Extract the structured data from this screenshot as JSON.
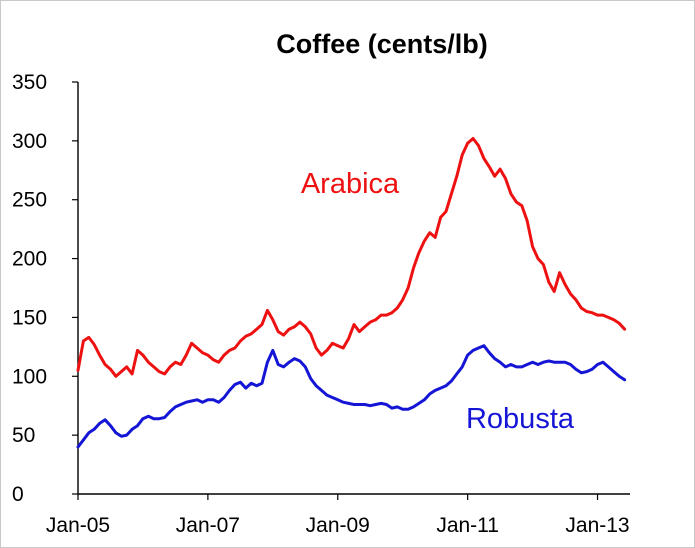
{
  "chart_data": {
    "type": "line",
    "title": "Coffee (cents/lb)",
    "xlabel": "",
    "ylabel": "",
    "ylim": [
      0,
      350
    ],
    "yticks": [
      0,
      50,
      100,
      150,
      200,
      250,
      300,
      350
    ],
    "xlim": [
      "2005-01",
      "2013-07"
    ],
    "xticks": [
      "Jan-05",
      "Jan-07",
      "Jan-09",
      "Jan-11",
      "Jan-13"
    ],
    "grid": false,
    "legend": "inline labels",
    "series": [
      {
        "name": "Arabica",
        "color": "#ee1111",
        "points": [
          [
            "2005-01",
            105
          ],
          [
            "2005-02",
            130
          ],
          [
            "2005-03",
            133
          ],
          [
            "2005-04",
            127
          ],
          [
            "2005-05",
            118
          ],
          [
            "2005-06",
            110
          ],
          [
            "2005-07",
            106
          ],
          [
            "2005-08",
            100
          ],
          [
            "2005-09",
            104
          ],
          [
            "2005-10",
            108
          ],
          [
            "2005-11",
            102
          ],
          [
            "2005-12",
            122
          ],
          [
            "2006-01",
            118
          ],
          [
            "2006-02",
            112
          ],
          [
            "2006-03",
            108
          ],
          [
            "2006-04",
            104
          ],
          [
            "2006-05",
            102
          ],
          [
            "2006-06",
            108
          ],
          [
            "2006-07",
            112
          ],
          [
            "2006-08",
            110
          ],
          [
            "2006-09",
            118
          ],
          [
            "2006-10",
            128
          ],
          [
            "2006-11",
            124
          ],
          [
            "2006-12",
            120
          ],
          [
            "2007-01",
            118
          ],
          [
            "2007-02",
            114
          ],
          [
            "2007-03",
            112
          ],
          [
            "2007-04",
            118
          ],
          [
            "2007-05",
            122
          ],
          [
            "2007-06",
            124
          ],
          [
            "2007-07",
            130
          ],
          [
            "2007-08",
            134
          ],
          [
            "2007-09",
            136
          ],
          [
            "2007-10",
            140
          ],
          [
            "2007-11",
            144
          ],
          [
            "2007-12",
            156
          ],
          [
            "2008-01",
            148
          ],
          [
            "2008-02",
            138
          ],
          [
            "2008-03",
            135
          ],
          [
            "2008-04",
            140
          ],
          [
            "2008-05",
            142
          ],
          [
            "2008-06",
            146
          ],
          [
            "2008-07",
            142
          ],
          [
            "2008-08",
            136
          ],
          [
            "2008-09",
            124
          ],
          [
            "2008-10",
            118
          ],
          [
            "2008-11",
            122
          ],
          [
            "2008-12",
            128
          ],
          [
            "2009-01",
            126
          ],
          [
            "2009-02",
            124
          ],
          [
            "2009-03",
            132
          ],
          [
            "2009-04",
            144
          ],
          [
            "2009-05",
            138
          ],
          [
            "2009-06",
            142
          ],
          [
            "2009-07",
            146
          ],
          [
            "2009-08",
            148
          ],
          [
            "2009-09",
            152
          ],
          [
            "2009-10",
            152
          ],
          [
            "2009-11",
            154
          ],
          [
            "2009-12",
            158
          ],
          [
            "2010-01",
            165
          ],
          [
            "2010-02",
            175
          ],
          [
            "2010-03",
            192
          ],
          [
            "2010-04",
            205
          ],
          [
            "2010-05",
            215
          ],
          [
            "2010-06",
            222
          ],
          [
            "2010-07",
            218
          ],
          [
            "2010-08",
            235
          ],
          [
            "2010-09",
            240
          ],
          [
            "2010-10",
            255
          ],
          [
            "2010-11",
            270
          ],
          [
            "2010-12",
            288
          ],
          [
            "2011-01",
            298
          ],
          [
            "2011-02",
            302
          ],
          [
            "2011-03",
            296
          ],
          [
            "2011-04",
            285
          ],
          [
            "2011-05",
            278
          ],
          [
            "2011-06",
            270
          ],
          [
            "2011-07",
            276
          ],
          [
            "2011-08",
            268
          ],
          [
            "2011-09",
            255
          ],
          [
            "2011-10",
            248
          ],
          [
            "2011-11",
            245
          ],
          [
            "2011-12",
            232
          ],
          [
            "2012-01",
            210
          ],
          [
            "2012-02",
            200
          ],
          [
            "2012-03",
            195
          ],
          [
            "2012-04",
            180
          ],
          [
            "2012-05",
            172
          ],
          [
            "2012-06",
            188
          ],
          [
            "2012-07",
            178
          ],
          [
            "2012-08",
            170
          ],
          [
            "2012-09",
            165
          ],
          [
            "2012-10",
            158
          ],
          [
            "2012-11",
            155
          ],
          [
            "2012-12",
            154
          ],
          [
            "2013-01",
            152
          ],
          [
            "2013-02",
            152
          ],
          [
            "2013-03",
            150
          ],
          [
            "2013-04",
            148
          ],
          [
            "2013-05",
            145
          ],
          [
            "2013-06",
            140
          ]
        ]
      },
      {
        "name": "Robusta",
        "color": "#1515d6",
        "points": [
          [
            "2005-01",
            40
          ],
          [
            "2005-02",
            46
          ],
          [
            "2005-03",
            52
          ],
          [
            "2005-04",
            55
          ],
          [
            "2005-05",
            60
          ],
          [
            "2005-06",
            63
          ],
          [
            "2005-07",
            58
          ],
          [
            "2005-08",
            52
          ],
          [
            "2005-09",
            49
          ],
          [
            "2005-10",
            50
          ],
          [
            "2005-11",
            55
          ],
          [
            "2005-12",
            58
          ],
          [
            "2006-01",
            64
          ],
          [
            "2006-02",
            66
          ],
          [
            "2006-03",
            64
          ],
          [
            "2006-04",
            64
          ],
          [
            "2006-05",
            65
          ],
          [
            "2006-06",
            70
          ],
          [
            "2006-07",
            74
          ],
          [
            "2006-08",
            76
          ],
          [
            "2006-09",
            78
          ],
          [
            "2006-10",
            79
          ],
          [
            "2006-11",
            80
          ],
          [
            "2006-12",
            78
          ],
          [
            "2007-01",
            80
          ],
          [
            "2007-02",
            80
          ],
          [
            "2007-03",
            78
          ],
          [
            "2007-04",
            82
          ],
          [
            "2007-05",
            88
          ],
          [
            "2007-06",
            93
          ],
          [
            "2007-07",
            95
          ],
          [
            "2007-08",
            90
          ],
          [
            "2007-09",
            94
          ],
          [
            "2007-10",
            92
          ],
          [
            "2007-11",
            94
          ],
          [
            "2007-12",
            112
          ],
          [
            "2008-01",
            122
          ],
          [
            "2008-02",
            110
          ],
          [
            "2008-03",
            108
          ],
          [
            "2008-04",
            112
          ],
          [
            "2008-05",
            115
          ],
          [
            "2008-06",
            113
          ],
          [
            "2008-07",
            108
          ],
          [
            "2008-08",
            98
          ],
          [
            "2008-09",
            92
          ],
          [
            "2008-10",
            88
          ],
          [
            "2008-11",
            84
          ],
          [
            "2008-12",
            82
          ],
          [
            "2009-01",
            80
          ],
          [
            "2009-02",
            78
          ],
          [
            "2009-03",
            77
          ],
          [
            "2009-04",
            76
          ],
          [
            "2009-05",
            76
          ],
          [
            "2009-06",
            76
          ],
          [
            "2009-07",
            75
          ],
          [
            "2009-08",
            76
          ],
          [
            "2009-09",
            77
          ],
          [
            "2009-10",
            76
          ],
          [
            "2009-11",
            73
          ],
          [
            "2009-12",
            74
          ],
          [
            "2010-01",
            72
          ],
          [
            "2010-02",
            72
          ],
          [
            "2010-03",
            74
          ],
          [
            "2010-04",
            77
          ],
          [
            "2010-05",
            80
          ],
          [
            "2010-06",
            85
          ],
          [
            "2010-07",
            88
          ],
          [
            "2010-08",
            90
          ],
          [
            "2010-09",
            92
          ],
          [
            "2010-10",
            96
          ],
          [
            "2010-11",
            102
          ],
          [
            "2010-12",
            108
          ],
          [
            "2011-01",
            118
          ],
          [
            "2011-02",
            122
          ],
          [
            "2011-03",
            124
          ],
          [
            "2011-04",
            126
          ],
          [
            "2011-05",
            120
          ],
          [
            "2011-06",
            115
          ],
          [
            "2011-07",
            112
          ],
          [
            "2011-08",
            108
          ],
          [
            "2011-09",
            110
          ],
          [
            "2011-10",
            108
          ],
          [
            "2011-11",
            108
          ],
          [
            "2011-12",
            110
          ],
          [
            "2012-01",
            112
          ],
          [
            "2012-02",
            110
          ],
          [
            "2012-03",
            112
          ],
          [
            "2012-04",
            113
          ],
          [
            "2012-05",
            112
          ],
          [
            "2012-06",
            112
          ],
          [
            "2012-07",
            112
          ],
          [
            "2012-08",
            110
          ],
          [
            "2012-09",
            106
          ],
          [
            "2012-10",
            103
          ],
          [
            "2012-11",
            104
          ],
          [
            "2012-12",
            106
          ],
          [
            "2013-01",
            110
          ],
          [
            "2013-02",
            112
          ],
          [
            "2013-03",
            108
          ],
          [
            "2013-04",
            104
          ],
          [
            "2013-05",
            100
          ],
          [
            "2013-06",
            97
          ]
        ]
      }
    ]
  }
}
